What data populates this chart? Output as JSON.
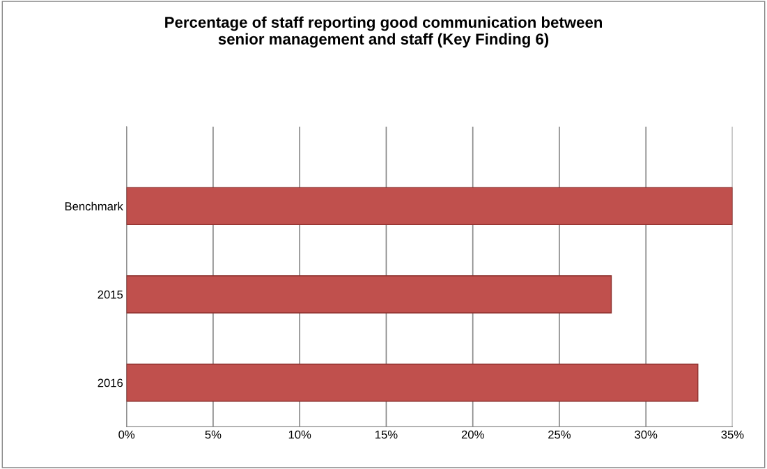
{
  "chart_data": {
    "type": "bar",
    "orientation": "horizontal",
    "title": "Percentage of staff reporting good communication between\nsenior management and staff (Key Finding 6)",
    "categories": [
      "Benchmark",
      "2015",
      "2016"
    ],
    "values": [
      35,
      28,
      33
    ],
    "color": "#c0504d",
    "xlim": [
      0,
      35
    ],
    "xticks": [
      {
        "value": 0,
        "label": "0%"
      },
      {
        "value": 5,
        "label": "5%"
      },
      {
        "value": 10,
        "label": "10%"
      },
      {
        "value": 15,
        "label": "15%"
      },
      {
        "value": 20,
        "label": "20%"
      },
      {
        "value": 25,
        "label": "25%"
      },
      {
        "value": 30,
        "label": "30%"
      },
      {
        "value": 35,
        "label": "35%"
      }
    ],
    "grid": "x"
  }
}
